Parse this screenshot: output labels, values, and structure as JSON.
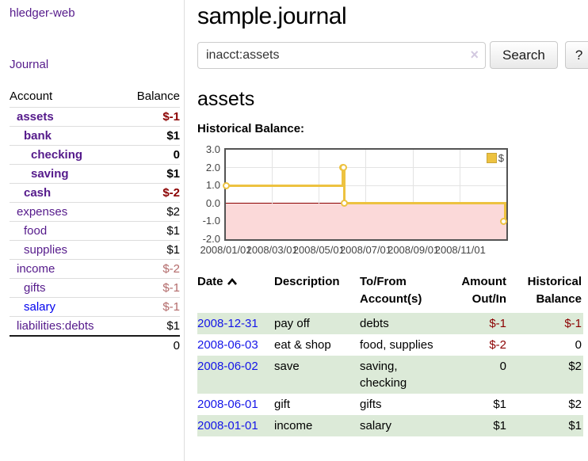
{
  "app": {
    "title": "hledger-web",
    "nav_journal": "Journal"
  },
  "sidebar": {
    "header": {
      "account": "Account",
      "balance": "Balance"
    },
    "accounts": [
      {
        "name": "assets",
        "depth": 0,
        "bold": true,
        "balance": "$-1",
        "balance_style": "negative-strong"
      },
      {
        "name": "bank",
        "depth": 1,
        "bold": true,
        "balance": "$1",
        "balance_style": "normal"
      },
      {
        "name": "checking",
        "depth": 2,
        "bold": true,
        "balance": "0",
        "balance_style": "normal"
      },
      {
        "name": "saving",
        "depth": 2,
        "bold": true,
        "balance": "$1",
        "balance_style": "normal"
      },
      {
        "name": "cash",
        "depth": 1,
        "bold": true,
        "balance": "$-2",
        "balance_style": "negative-strong"
      },
      {
        "name": "expenses",
        "depth": 0,
        "bold": false,
        "balance": "$2",
        "balance_style": "normal"
      },
      {
        "name": "food",
        "depth": 1,
        "bold": false,
        "balance": "$1",
        "balance_style": "normal"
      },
      {
        "name": "supplies",
        "depth": 1,
        "bold": false,
        "balance": "$1",
        "balance_style": "normal"
      },
      {
        "name": "income",
        "depth": 0,
        "bold": false,
        "balance": "$-2",
        "balance_style": "negative-soft"
      },
      {
        "name": "gifts",
        "depth": 1,
        "bold": false,
        "balance": "$-1",
        "balance_style": "negative-soft"
      },
      {
        "name": "salary",
        "depth": 1,
        "bold": false,
        "balance": "$-1",
        "balance_style": "negative-soft",
        "link_style": "unvisited"
      },
      {
        "name": "liabilities:debts",
        "depth": 0,
        "bold": false,
        "balance": "$1",
        "balance_style": "normal"
      }
    ],
    "total": "0"
  },
  "main": {
    "title": "sample.journal",
    "search": {
      "value": "inacct:assets",
      "clear_icon": "×",
      "button_label": "Search",
      "help_label": "?"
    },
    "account_heading": "assets",
    "chart_label": "Historical Balance:"
  },
  "chart_data": {
    "type": "line",
    "step": true,
    "title": "Historical Balance",
    "series": [
      {
        "name": "$",
        "color": "#edc240",
        "points": [
          {
            "date": "2008/01/01",
            "day": 0,
            "value": 1
          },
          {
            "date": "2008/06/01",
            "day": 152,
            "value": 2
          },
          {
            "date": "2008/06/02",
            "day": 153,
            "value": 2
          },
          {
            "date": "2008/06/03",
            "day": 154,
            "value": 0
          },
          {
            "date": "2008/12/31",
            "day": 365,
            "value": -1
          }
        ]
      }
    ],
    "x_ticks": [
      {
        "label": "2008/01/01",
        "day": 0
      },
      {
        "label": "2008/03/01",
        "day": 60
      },
      {
        "label": "2008/05/01",
        "day": 121
      },
      {
        "label": "2008/07/01",
        "day": 182
      },
      {
        "label": "2008/09/01",
        "day": 244
      },
      {
        "label": "2008/11/01",
        "day": 305
      }
    ],
    "y_ticks": [
      "3.0",
      "2.0",
      "1.0",
      "0.0",
      "-1.0",
      "-2.0"
    ],
    "ylim": [
      -2,
      3
    ],
    "xlim_days": [
      0,
      365
    ],
    "grid": true,
    "legend_position": "top-right",
    "colors": {
      "line": "#edc240",
      "negative_region": "#fbd9d9",
      "zero_line": "#8b0000",
      "grid_line": "#e3e3e3",
      "border": "#545454",
      "axis_label": "#444444"
    }
  },
  "register": {
    "columns": [
      {
        "l1": "Date",
        "l2": "",
        "align": "left",
        "sorted": true
      },
      {
        "l1": "Description",
        "l2": "",
        "align": "left",
        "sorted": false
      },
      {
        "l1": "To/From",
        "l2": "Account(s)",
        "align": "left",
        "sorted": false
      },
      {
        "l1": "Amount",
        "l2": "Out/In",
        "align": "right",
        "sorted": false
      },
      {
        "l1": "Historical",
        "l2": "Balance",
        "align": "right",
        "sorted": false
      }
    ],
    "sort_icon": "chevron-up",
    "rows": [
      {
        "date": "2008-12-31",
        "description": "pay off",
        "accounts": "debts",
        "amount": "$-1",
        "amount_style": "negative",
        "balance": "$-1",
        "balance_style": "negative"
      },
      {
        "date": "2008-06-03",
        "description": "eat & shop",
        "accounts": "food, supplies",
        "amount": "$-2",
        "amount_style": "negative",
        "balance": "0",
        "balance_style": "normal"
      },
      {
        "date": "2008-06-02",
        "description": "save",
        "accounts": "saving, checking",
        "amount": "0",
        "amount_style": "normal",
        "balance": "$2",
        "balance_style": "normal"
      },
      {
        "date": "2008-06-01",
        "description": "gift",
        "accounts": "gifts",
        "amount": "$1",
        "amount_style": "normal",
        "balance": "$2",
        "balance_style": "normal"
      },
      {
        "date": "2008-01-01",
        "description": "income",
        "accounts": "salary",
        "amount": "$1",
        "amount_style": "normal",
        "balance": "$1",
        "balance_style": "normal"
      }
    ]
  }
}
